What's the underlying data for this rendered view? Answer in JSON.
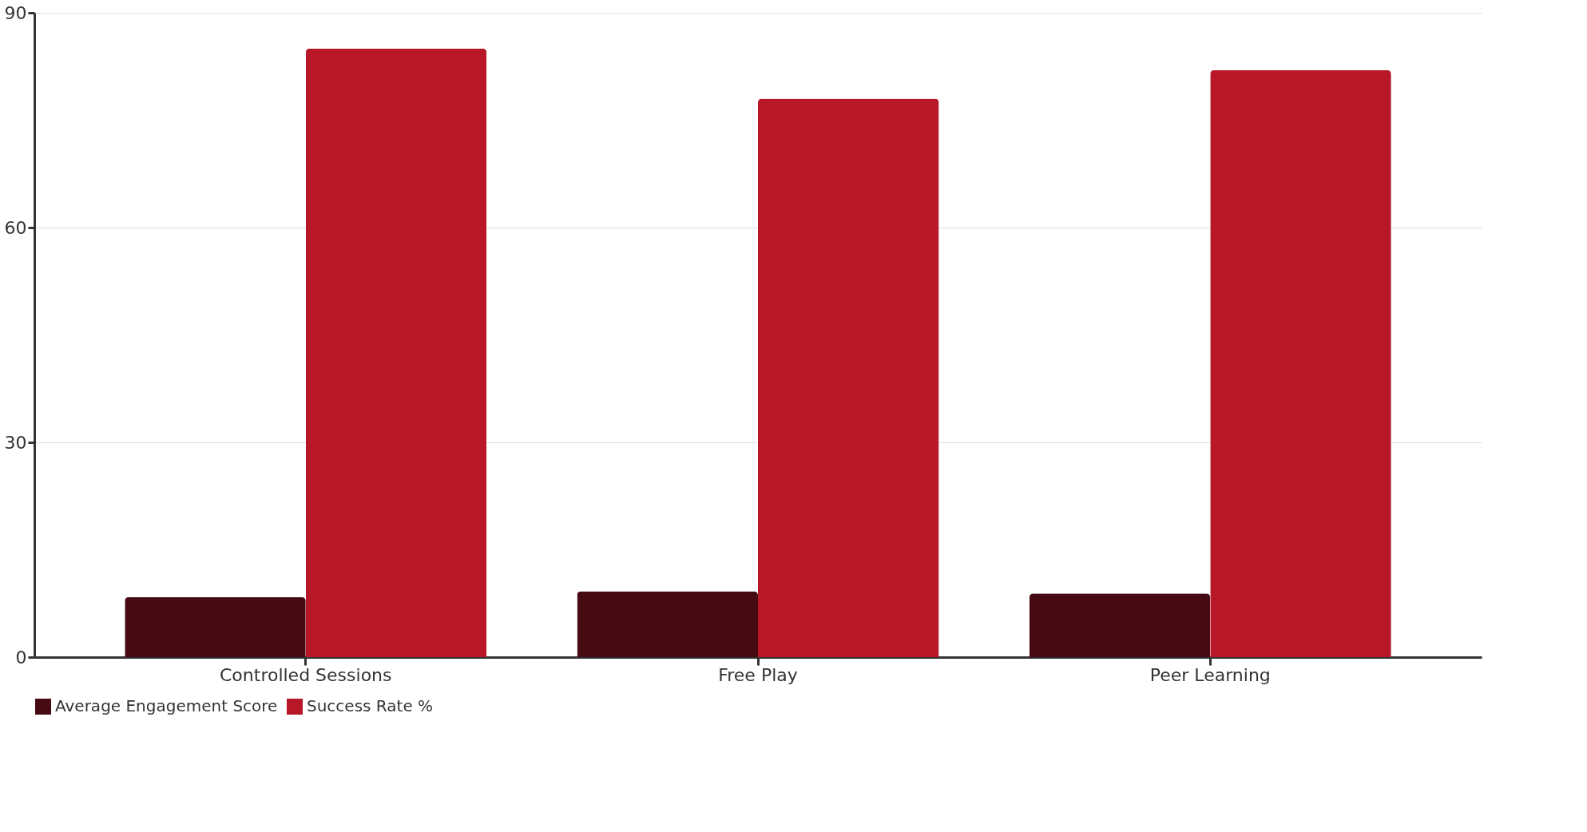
{
  "chart_data": {
    "type": "bar",
    "categories": [
      "Controlled Sessions",
      "Free Play",
      "Peer Learning"
    ],
    "series": [
      {
        "name": "Average Engagement Score",
        "color": "#450a12",
        "values": [
          8.4,
          9.2,
          8.9
        ]
      },
      {
        "name": "Success Rate %",
        "color": "#b71727",
        "values": [
          85,
          78,
          82
        ]
      }
    ],
    "ylim": [
      0,
      90
    ],
    "yticks": [
      0,
      30,
      60,
      90
    ],
    "grid": "y",
    "legend": "bottom"
  }
}
